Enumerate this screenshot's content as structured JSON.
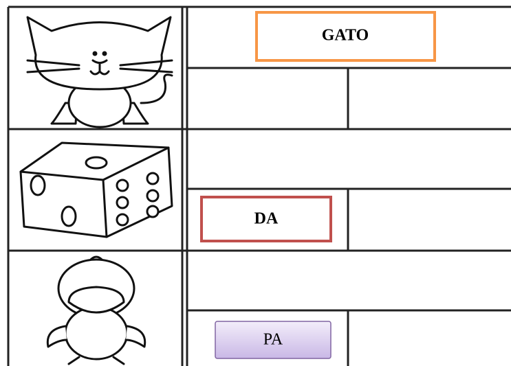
{
  "rows": [
    {
      "label": "GATO"
    },
    {
      "label": "DA"
    },
    {
      "label": "PA"
    }
  ]
}
